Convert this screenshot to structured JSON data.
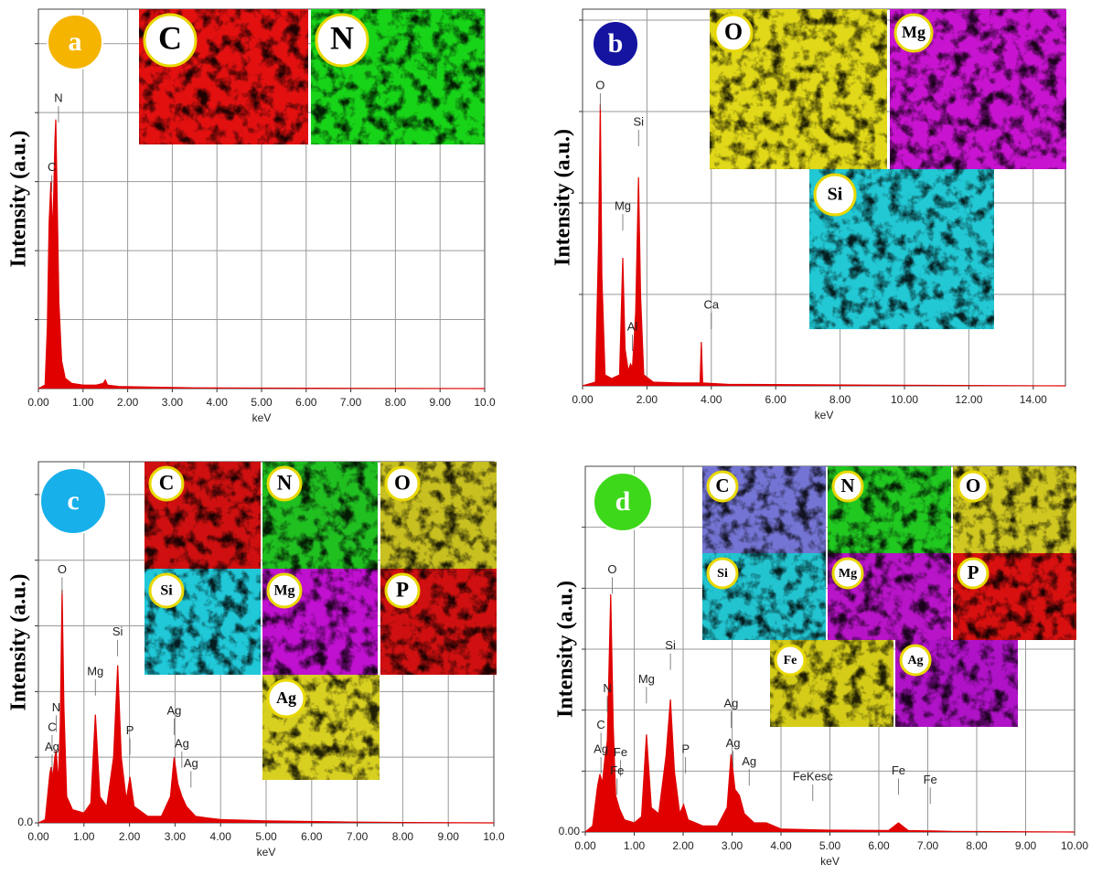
{
  "chart_data": [
    {
      "type": "line",
      "panel": "a",
      "badge_color": "#f5b400",
      "ylabel": "Intensity (a.u.)",
      "xlabel": "keV",
      "color": "#e00000",
      "grid": true,
      "xlim": [
        0,
        10
      ],
      "ylim": [
        0,
        110
      ],
      "xticks": [
        {
          "value": 0,
          "label": "0.00"
        },
        {
          "value": 1,
          "label": "1.00"
        },
        {
          "value": 2,
          "label": "2.00"
        },
        {
          "value": 3,
          "label": "3.00"
        },
        {
          "value": 4,
          "label": "4.00"
        },
        {
          "value": 5,
          "label": "5.00"
        },
        {
          "value": 6,
          "label": "6.00"
        },
        {
          "value": 7,
          "label": "7.00"
        },
        {
          "value": 8,
          "label": "8.00"
        },
        {
          "value": 9,
          "label": "9.00"
        },
        {
          "value": 10,
          "label": "10.0"
        }
      ],
      "yticks": [
        20,
        40,
        60,
        80,
        100
      ],
      "x": [
        0,
        0.15,
        0.2,
        0.24,
        0.28,
        0.31,
        0.34,
        0.37,
        0.39,
        0.42,
        0.46,
        0.52,
        0.6,
        0.75,
        1.0,
        1.3,
        1.45,
        1.5,
        1.55,
        1.8,
        2.6,
        3.5,
        6,
        10
      ],
      "values": [
        0,
        1,
        18,
        48,
        60,
        45,
        55,
        72,
        78,
        55,
        25,
        8,
        3,
        1.5,
        1,
        1,
        1.5,
        2.5,
        1,
        0.6,
        0.4,
        0.2,
        0.1,
        0
      ],
      "peaks": [
        {
          "label": "N",
          "x": 0.45,
          "y": 84
        },
        {
          "label": "C",
          "x": 0.3,
          "y": 64
        }
      ],
      "insets": [
        {
          "label": "C",
          "color": "#e31010"
        },
        {
          "label": "N",
          "color": "#18d418"
        }
      ]
    },
    {
      "type": "line",
      "panel": "b",
      "badge_color": "#1414a0",
      "ylabel": "Intensity (a.u.)",
      "xlabel": "keV",
      "color": "#e00000",
      "grid": true,
      "xlim": [
        0,
        15
      ],
      "ylim": [
        0,
        103
      ],
      "xticks": [
        {
          "value": 0,
          "label": "0.00"
        },
        {
          "value": 2,
          "label": "2.00"
        },
        {
          "value": 4,
          "label": "4.00"
        },
        {
          "value": 6,
          "label": "6.00"
        },
        {
          "value": 8,
          "label": "8.00"
        },
        {
          "value": 10,
          "label": "10.00"
        },
        {
          "value": 12,
          "label": "12.00"
        },
        {
          "value": 14,
          "label": "14.00"
        }
      ],
      "yticks": [
        25,
        50,
        75,
        100
      ],
      "x": [
        0,
        0.4,
        0.5,
        0.55,
        0.6,
        0.7,
        0.9,
        1.15,
        1.25,
        1.32,
        1.42,
        1.49,
        1.55,
        1.65,
        1.74,
        1.8,
        1.9,
        2.2,
        3,
        3.65,
        3.69,
        3.73,
        4.5,
        9,
        15
      ],
      "values": [
        0,
        1,
        40,
        77,
        30,
        3,
        2,
        3,
        35,
        10,
        4,
        6,
        5,
        20,
        57,
        25,
        3,
        1,
        0.8,
        0.8,
        12,
        0.8,
        0.4,
        0.2,
        0
      ],
      "peaks": [
        {
          "label": "O",
          "x": 0.55,
          "y": 82
        },
        {
          "label": "Mg",
          "x": 1.25,
          "y": 49
        },
        {
          "label": "Si",
          "x": 1.74,
          "y": 72
        },
        {
          "label": "Al",
          "x": 1.55,
          "y": 16
        },
        {
          "label": "Ca",
          "x": 4.0,
          "y": 22
        }
      ],
      "insets": [
        {
          "label": "O",
          "color": "#e0d818"
        },
        {
          "label": "Mg",
          "color": "#c814d0"
        },
        {
          "label": "Si",
          "color": "#22c8d4"
        }
      ]
    },
    {
      "type": "line",
      "panel": "c",
      "badge_color": "#18b0ea",
      "ylabel": "Intensity (a.u.)",
      "xlabel": "keV",
      "color": "#e00000",
      "grid": true,
      "xlim": [
        0,
        10
      ],
      "ylim": [
        0,
        110
      ],
      "xticks": [
        {
          "value": 0,
          "label": "0.00"
        },
        {
          "value": 1,
          "label": "1.00"
        },
        {
          "value": 2,
          "label": "2.00"
        },
        {
          "value": 3,
          "label": "3.00"
        },
        {
          "value": 4,
          "label": "4.00"
        },
        {
          "value": 5,
          "label": "5.00"
        },
        {
          "value": 6,
          "label": "6.00"
        },
        {
          "value": 7,
          "label": "7.00"
        },
        {
          "value": 8,
          "label": "8.00"
        },
        {
          "value": 9,
          "label": "9.00"
        },
        {
          "value": 10,
          "label": "10.0"
        }
      ],
      "yticks": [
        {
          "value": 0,
          "label": "0.0"
        },
        20,
        40,
        60,
        80,
        100
      ],
      "x": [
        0,
        0.15,
        0.25,
        0.28,
        0.32,
        0.36,
        0.39,
        0.44,
        0.48,
        0.52,
        0.56,
        0.62,
        0.75,
        1.0,
        1.15,
        1.25,
        1.35,
        1.5,
        1.65,
        1.74,
        1.82,
        1.93,
        2.01,
        2.1,
        2.4,
        2.7,
        2.9,
        2.98,
        3.06,
        3.15,
        3.25,
        3.45,
        3.7,
        4.0,
        5,
        6.5,
        8,
        10
      ],
      "values": [
        0,
        1,
        15,
        17,
        14,
        20,
        22,
        12,
        30,
        71,
        35,
        8,
        4,
        3,
        6,
        33,
        8,
        5,
        20,
        48,
        20,
        7,
        14,
        5,
        2,
        2,
        8,
        20,
        12,
        8,
        5,
        2,
        1.5,
        1,
        0.6,
        0.3,
        0.1,
        0
      ],
      "peaks": [
        {
          "label": "O",
          "x": 0.52,
          "y": 77
        },
        {
          "label": "Si",
          "x": 1.74,
          "y": 58
        },
        {
          "label": "Mg",
          "x": 1.25,
          "y": 46
        },
        {
          "label": "P",
          "x": 2.01,
          "y": 28
        },
        {
          "label": "Ag",
          "x": 2.98,
          "y": 34
        },
        {
          "label": "Ag",
          "x": 3.15,
          "y": 24
        },
        {
          "label": "Ag",
          "x": 3.35,
          "y": 18
        },
        {
          "label": "N",
          "x": 0.39,
          "y": 35
        },
        {
          "label": "C",
          "x": 0.3,
          "y": 29
        },
        {
          "label": "Ag",
          "x": 0.3,
          "y": 23
        }
      ],
      "insets": [
        {
          "label": "C",
          "color": "#d01010"
        },
        {
          "label": "N",
          "color": "#20c020"
        },
        {
          "label": "O",
          "color": "#c8c020"
        },
        {
          "label": "Si",
          "color": "#20c8d8"
        },
        {
          "label": "Mg",
          "color": "#c010d0"
        },
        {
          "label": "P",
          "color": "#d01010"
        },
        {
          "label": "Ag",
          "color": "#d8d020"
        }
      ]
    },
    {
      "type": "line",
      "panel": "d",
      "badge_color": "#3ed81a",
      "ylabel": "Intensity (a.u.)",
      "xlabel": "keV",
      "color": "#e00000",
      "grid": true,
      "xlim": [
        0,
        10
      ],
      "ylim": [
        0,
        120
      ],
      "xticks": [
        {
          "value": 0,
          "label": "0.00"
        },
        {
          "value": 1,
          "label": "1.00"
        },
        {
          "value": 2,
          "label": "2.00"
        },
        {
          "value": 3,
          "label": "3.00"
        },
        {
          "value": 4,
          "label": "4.00"
        },
        {
          "value": 5,
          "label": "5.00"
        },
        {
          "value": 6,
          "label": "6.00"
        },
        {
          "value": 7,
          "label": "7.00"
        },
        {
          "value": 8,
          "label": "8.00"
        },
        {
          "value": 9,
          "label": "9.00"
        },
        {
          "value": 10,
          "label": "10.00"
        }
      ],
      "yticks": [
        {
          "value": 0,
          "label": "0.00"
        },
        20,
        40,
        60,
        80,
        100
      ],
      "x": [
        0,
        0.15,
        0.25,
        0.3,
        0.35,
        0.4,
        0.45,
        0.52,
        0.57,
        0.62,
        0.7,
        0.8,
        1.0,
        1.15,
        1.25,
        1.35,
        1.5,
        1.65,
        1.74,
        1.82,
        1.93,
        2.01,
        2.1,
        2.4,
        2.7,
        2.9,
        2.98,
        3.06,
        3.15,
        3.25,
        3.45,
        3.7,
        4.0,
        5,
        6.2,
        6.4,
        6.6,
        7.5,
        10
      ],
      "values": [
        0,
        2,
        15,
        19,
        16,
        24,
        30,
        78,
        35,
        12,
        7.5,
        4,
        3,
        5,
        32,
        8,
        6,
        25,
        43.5,
        20,
        6,
        9,
        4,
        2,
        2,
        8,
        25.5,
        14,
        12,
        6,
        3,
        3,
        1,
        0.6,
        0.5,
        3,
        0.5,
        0.2,
        0
      ],
      "peaks": [
        {
          "label": "O",
          "x": 0.55,
          "y": 86
        },
        {
          "label": "N",
          "x": 0.45,
          "y": 47
        },
        {
          "label": "C",
          "x": 0.32,
          "y": 35
        },
        {
          "label": "Ag",
          "x": 0.32,
          "y": 27
        },
        {
          "label": "Fe",
          "x": 0.72,
          "y": 26
        },
        {
          "label": "Fe",
          "x": 0.65,
          "y": 20
        },
        {
          "label": "Mg",
          "x": 1.25,
          "y": 50
        },
        {
          "label": "Si",
          "x": 1.74,
          "y": 61
        },
        {
          "label": "P",
          "x": 2.05,
          "y": 27
        },
        {
          "label": "Ag",
          "x": 2.98,
          "y": 42
        },
        {
          "label": "Ag",
          "x": 3.02,
          "y": 29
        },
        {
          "label": "Ag",
          "x": 3.35,
          "y": 23
        },
        {
          "label": "FeKesc",
          "x": 4.65,
          "y": 18
        },
        {
          "label": "Fe",
          "x": 6.4,
          "y": 20
        },
        {
          "label": "Fe",
          "x": 7.05,
          "y": 17
        }
      ],
      "insets": [
        {
          "label": "C",
          "color": "#7474d4"
        },
        {
          "label": "N",
          "color": "#20c820"
        },
        {
          "label": "O",
          "color": "#d0c820"
        },
        {
          "label": "Si",
          "color": "#22c4d0"
        },
        {
          "label": "Mg",
          "color": "#b814c8"
        },
        {
          "label": "P",
          "color": "#d81010"
        },
        {
          "label": "Fe",
          "color": "#d4cc18"
        },
        {
          "label": "Ag",
          "color": "#b012c8"
        }
      ]
    }
  ]
}
